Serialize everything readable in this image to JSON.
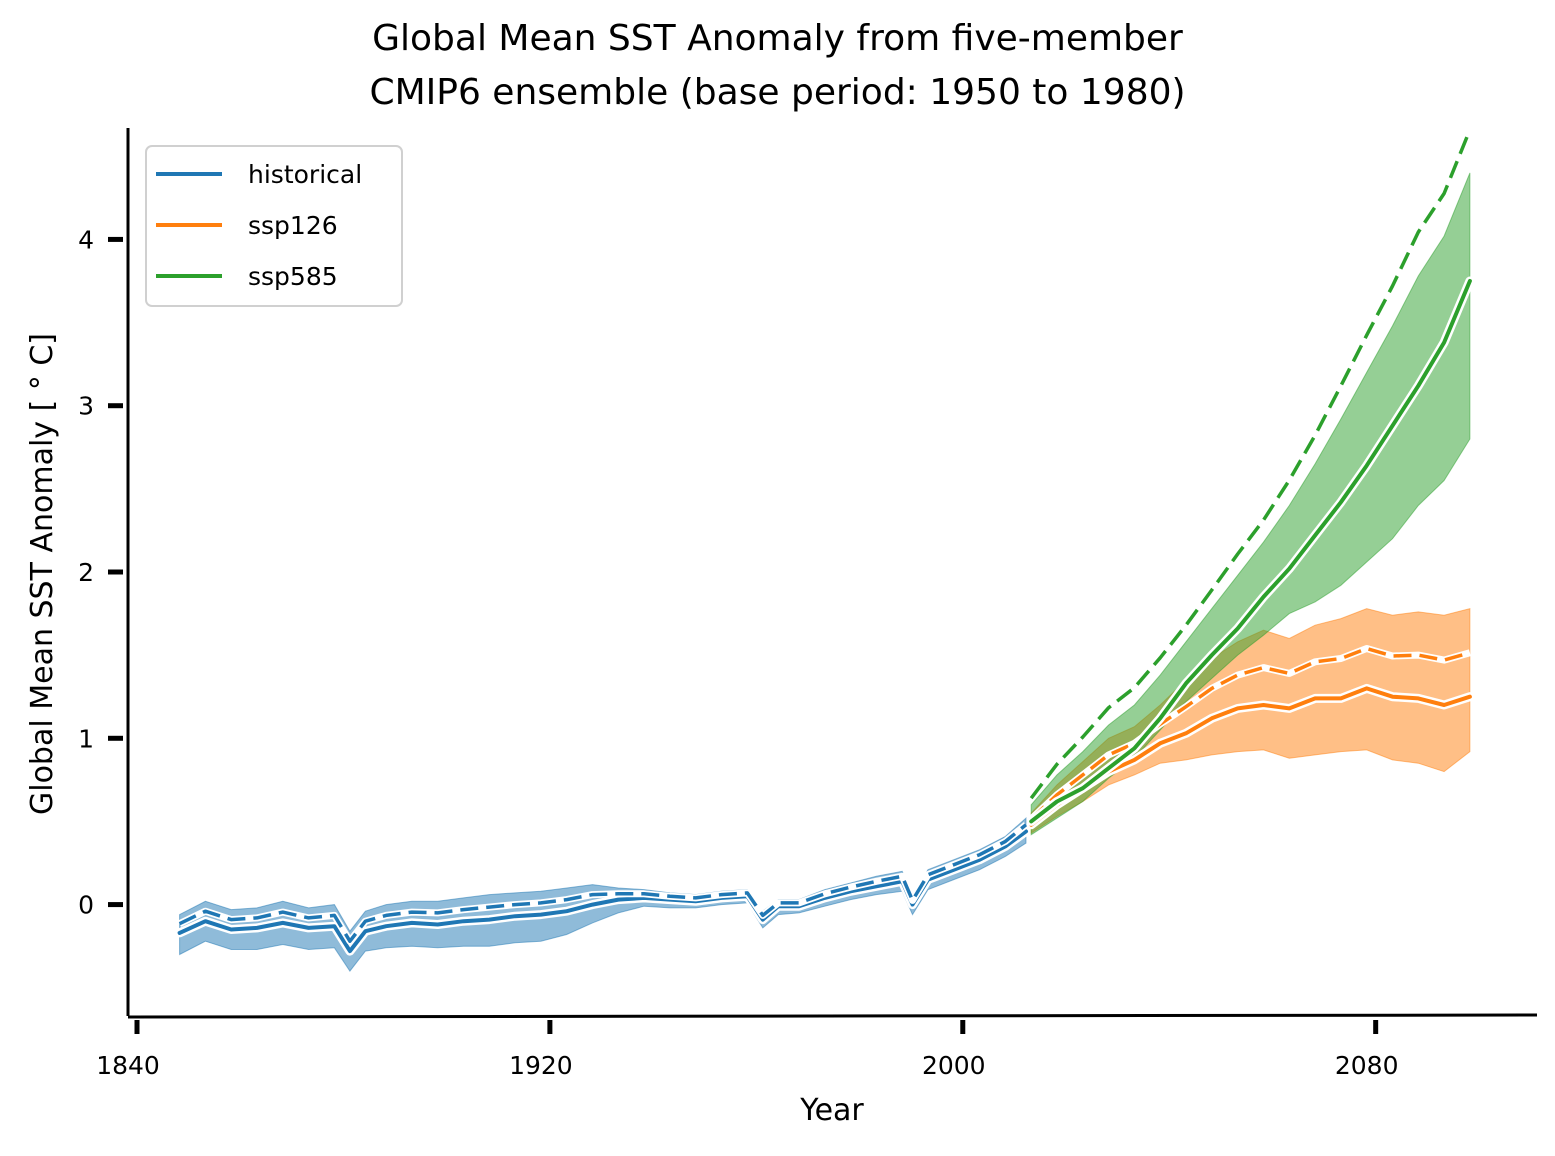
{
  "chart_data": {
    "type": "line",
    "title_line1": "Global Mean SST Anomaly from five-member",
    "title_line2": "CMIP6 ensemble (base period: 1950 to 1980)",
    "xlabel": "Year",
    "ylabel": "Global Mean SST Anomaly [ ° C]",
    "xlim": [
      1840,
      2113
    ],
    "ylim": [
      -0.67,
      4.67
    ],
    "xticks": [
      1840,
      1920,
      2000,
      2080
    ],
    "yticks": [
      0,
      1,
      2,
      3,
      4
    ],
    "legend_position": "top-left",
    "grid": false,
    "series": [
      {
        "name": "historical",
        "color": "#1f77b4",
        "x": [
          1850,
          1855,
          1860,
          1865,
          1870,
          1875,
          1880,
          1883,
          1886,
          1890,
          1895,
          1900,
          1905,
          1910,
          1915,
          1920,
          1925,
          1930,
          1935,
          1940,
          1945,
          1950,
          1955,
          1960,
          1963,
          1966,
          1970,
          1975,
          1980,
          1985,
          1990,
          1992,
          1995,
          2000,
          2005,
          2010,
          2014
        ],
        "mean": [
          -0.17,
          -0.1,
          -0.15,
          -0.14,
          -0.11,
          -0.14,
          -0.13,
          -0.28,
          -0.16,
          -0.13,
          -0.11,
          -0.12,
          -0.1,
          -0.09,
          -0.07,
          -0.06,
          -0.04,
          0.0,
          0.03,
          0.04,
          0.03,
          0.02,
          0.04,
          0.05,
          -0.09,
          -0.01,
          -0.01,
          0.04,
          0.08,
          0.11,
          0.14,
          0.0,
          0.15,
          0.21,
          0.27,
          0.35,
          0.44
        ],
        "upper": [
          -0.06,
          0.02,
          -0.03,
          -0.02,
          0.02,
          -0.02,
          0.0,
          -0.16,
          -0.04,
          0.0,
          0.02,
          0.02,
          0.04,
          0.06,
          0.07,
          0.08,
          0.1,
          0.12,
          0.1,
          0.09,
          0.07,
          0.06,
          0.08,
          0.09,
          -0.04,
          0.03,
          0.03,
          0.09,
          0.13,
          0.17,
          0.2,
          0.05,
          0.21,
          0.27,
          0.33,
          0.41,
          0.52
        ],
        "lower": [
          -0.3,
          -0.22,
          -0.27,
          -0.27,
          -0.24,
          -0.27,
          -0.26,
          -0.4,
          -0.28,
          -0.26,
          -0.25,
          -0.26,
          -0.25,
          -0.25,
          -0.23,
          -0.22,
          -0.18,
          -0.11,
          -0.05,
          -0.01,
          -0.02,
          -0.02,
          0.0,
          0.01,
          -0.14,
          -0.06,
          -0.05,
          -0.01,
          0.03,
          0.06,
          0.08,
          -0.06,
          0.09,
          0.15,
          0.21,
          0.29,
          0.37
        ]
      },
      {
        "name": "ssp126",
        "color": "#ff7f0e",
        "x": [
          2015,
          2020,
          2025,
          2030,
          2035,
          2040,
          2045,
          2050,
          2055,
          2060,
          2065,
          2070,
          2075,
          2080,
          2085,
          2090,
          2095,
          2100
        ],
        "mean": [
          0.48,
          0.6,
          0.7,
          0.8,
          0.87,
          0.97,
          1.03,
          1.12,
          1.18,
          1.2,
          1.18,
          1.24,
          1.24,
          1.3,
          1.25,
          1.24,
          1.2,
          1.25
        ],
        "upper": [
          0.55,
          0.72,
          0.86,
          1.0,
          1.07,
          1.2,
          1.35,
          1.48,
          1.58,
          1.65,
          1.6,
          1.68,
          1.72,
          1.78,
          1.74,
          1.76,
          1.74,
          1.78
        ],
        "lower": [
          0.43,
          0.53,
          0.62,
          0.72,
          0.78,
          0.85,
          0.87,
          0.9,
          0.92,
          0.93,
          0.88,
          0.9,
          0.92,
          0.93,
          0.87,
          0.85,
          0.8,
          0.92
        ]
      },
      {
        "name": "ssp585",
        "color": "#2ca02c",
        "x": [
          2015,
          2020,
          2025,
          2030,
          2035,
          2040,
          2045,
          2050,
          2055,
          2060,
          2065,
          2070,
          2075,
          2080,
          2085,
          2090,
          2095,
          2100
        ],
        "mean": [
          0.5,
          0.62,
          0.7,
          0.82,
          0.94,
          1.12,
          1.33,
          1.5,
          1.66,
          1.85,
          2.02,
          2.22,
          2.42,
          2.64,
          2.88,
          3.12,
          3.38,
          3.75
        ],
        "upper": [
          0.6,
          0.78,
          0.92,
          1.08,
          1.2,
          1.38,
          1.58,
          1.78,
          1.98,
          2.18,
          2.4,
          2.65,
          2.92,
          3.2,
          3.48,
          3.78,
          4.02,
          4.4
        ],
        "lower": [
          0.42,
          0.52,
          0.62,
          0.76,
          0.88,
          1.05,
          1.22,
          1.36,
          1.5,
          1.62,
          1.75,
          1.82,
          1.92,
          2.06,
          2.2,
          2.4,
          2.55,
          2.8
        ]
      }
    ]
  }
}
